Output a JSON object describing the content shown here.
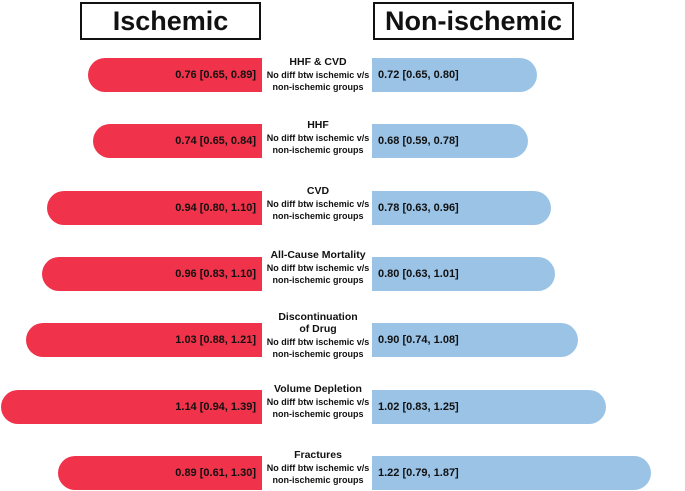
{
  "headers": {
    "left": "Ischemic",
    "right": "Non-ischemic"
  },
  "colors": {
    "ischemic": "#f0324a",
    "non_ischemic": "#9bc3e6"
  },
  "chart_data": {
    "type": "bar",
    "orientation": "horizontal-diverging",
    "categories": [
      "HHF & CVD",
      "HHF",
      "CVD",
      "All-Cause Mortality",
      "Discontinuation of Drug",
      "Volume Depletion",
      "Fractures"
    ],
    "category_lines": [
      [
        "HHF & CVD"
      ],
      [
        "HHF"
      ],
      [
        "CVD"
      ],
      [
        "All-Cause Mortality"
      ],
      [
        "Discontinuation",
        "of Drug"
      ],
      [
        "Volume Depletion"
      ],
      [
        "Fractures"
      ]
    ],
    "series": [
      {
        "name": "Ischemic",
        "values": [
          0.76,
          0.74,
          0.94,
          0.96,
          1.03,
          1.14,
          0.89
        ],
        "labels": [
          "0.76 [0.65, 0.89]",
          "0.74 [0.65, 0.84]",
          "0.94 [0.80, 1.10]",
          "0.96 [0.83, 1.10]",
          "1.03 [0.88, 1.21]",
          "1.14 [0.94, 1.39]",
          "0.89 [0.61, 1.30]"
        ]
      },
      {
        "name": "Non-ischemic",
        "values": [
          0.72,
          0.68,
          0.78,
          0.8,
          0.9,
          1.02,
          1.22
        ],
        "labels": [
          "0.72 [0.65, 0.80]",
          "0.68 [0.59, 0.78]",
          "0.78 [0.63, 0.96]",
          "0.80 [0.63, 1.01]",
          "0.90 [0.74, 1.08]",
          "1.02 [0.83, 1.25]",
          "1.22 [0.79, 1.87]"
        ]
      }
    ],
    "annotation": [
      "No diff btw ischemic v/s",
      "non-ischemic groups"
    ]
  }
}
